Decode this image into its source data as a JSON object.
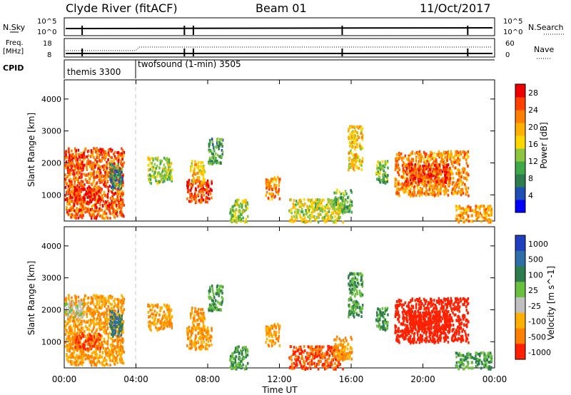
{
  "header": {
    "title": "Clyde River (fitACF)",
    "beam": "Beam 01",
    "date": "11/Oct/2017"
  },
  "noise_panel": {
    "left_label": "N.Sky",
    "right_label": "N.Search",
    "left_ticks": [
      "10^5",
      "10^0"
    ],
    "right_ticks": [
      "10^5",
      "10^0"
    ]
  },
  "freq_panel": {
    "left_label_1": "Freq.",
    "left_label_2": "[MHz]",
    "right_label": "Nave",
    "left_ticks": [
      "18",
      "8"
    ],
    "right_ticks": [
      "60",
      "0"
    ]
  },
  "cpid": {
    "label": "CPID",
    "segments": [
      {
        "name": "themis 3300",
        "start_hour": 0,
        "end_hour": 4
      },
      {
        "name": "twofsound (1-min) 3505",
        "start_hour": 4,
        "end_hour": 24
      }
    ]
  },
  "axes": {
    "y_label": "Slant Range [km]",
    "y_ticks": [
      "1000",
      "2000",
      "3000",
      "4000"
    ],
    "x_label": "Time UT",
    "x_ticks": [
      "00:00",
      "04:00",
      "08:00",
      "12:00",
      "16:00",
      "20:00",
      "00:00"
    ]
  },
  "power_colorbar": {
    "label": "Power [dB]",
    "ticks": [
      "4",
      "8",
      "12",
      "16",
      "20",
      "24",
      "28"
    ],
    "colors": [
      "#0000ff",
      "#1f4fb5",
      "#2e7d4f",
      "#3fa848",
      "#8cc63f",
      "#ffd700",
      "#ffb000",
      "#ff8000",
      "#ff4000",
      "#ee0000"
    ]
  },
  "velocity_colorbar": {
    "label": "Velocity [m s^-1]",
    "ticks": [
      "1000",
      "500",
      "100",
      "25",
      "-25",
      "-100",
      "-500",
      "-1000"
    ],
    "colors": [
      "#1f3fbf",
      "#2f6fa8",
      "#2e7d4f",
      "#6bbf3f",
      "#c0c0c0",
      "#ffb000",
      "#ff8000",
      "#ff2000"
    ]
  },
  "chart_data": {
    "type": "heatmap",
    "panels": [
      "power",
      "velocity"
    ],
    "x_range_hours": [
      0,
      24
    ],
    "y_range_km": [
      180,
      4600
    ],
    "scatter_patches": [
      {
        "t0": 0.0,
        "t1": 3.3,
        "r0": 300,
        "r1": 2500,
        "power": 24,
        "velocity": -100
      },
      {
        "t0": 0.5,
        "t1": 2.0,
        "r0": 800,
        "r1": 1300,
        "power": 28,
        "velocity": -500
      },
      {
        "t0": 0.0,
        "t1": 1.0,
        "r0": 1800,
        "r1": 2300,
        "power": 26,
        "velocity": 25
      },
      {
        "t0": 2.5,
        "t1": 3.2,
        "r0": 1200,
        "r1": 2000,
        "power": 8,
        "velocity": 500
      },
      {
        "t0": 4.6,
        "t1": 6.0,
        "r0": 1400,
        "r1": 2200,
        "power": 14,
        "velocity": -100
      },
      {
        "t0": 6.8,
        "t1": 8.2,
        "r0": 800,
        "r1": 1500,
        "power": 26,
        "velocity": -100
      },
      {
        "t0": 7.0,
        "t1": 7.8,
        "r0": 1400,
        "r1": 2100,
        "power": 18,
        "velocity": -100
      },
      {
        "t0": 8.0,
        "t1": 8.8,
        "r0": 2000,
        "r1": 2800,
        "power": 10,
        "velocity": 100
      },
      {
        "t0": 9.2,
        "t1": 10.2,
        "r0": 180,
        "r1": 900,
        "power": 14,
        "velocity": 100
      },
      {
        "t0": 11.2,
        "t1": 12.0,
        "r0": 900,
        "r1": 1600,
        "power": 22,
        "velocity": -100
      },
      {
        "t0": 12.5,
        "t1": 15.5,
        "r0": 180,
        "r1": 900,
        "power": 16,
        "velocity": -500
      },
      {
        "t0": 15.0,
        "t1": 16.0,
        "r0": 500,
        "r1": 1200,
        "power": 12,
        "velocity": -100
      },
      {
        "t0": 15.8,
        "t1": 16.6,
        "r0": 1800,
        "r1": 3200,
        "power": 18,
        "velocity": 100
      },
      {
        "t0": 17.3,
        "t1": 18.0,
        "r0": 1400,
        "r1": 2100,
        "power": 12,
        "velocity": 100
      },
      {
        "t0": 18.4,
        "t1": 22.5,
        "r0": 1000,
        "r1": 2400,
        "power": 22,
        "velocity": -1000
      },
      {
        "t0": 19.0,
        "t1": 21.5,
        "r0": 1400,
        "r1": 2000,
        "power": 26,
        "velocity": -1000
      },
      {
        "t0": 21.8,
        "t1": 23.8,
        "r0": 180,
        "r1": 700,
        "power": 20,
        "velocity": 100
      }
    ]
  }
}
